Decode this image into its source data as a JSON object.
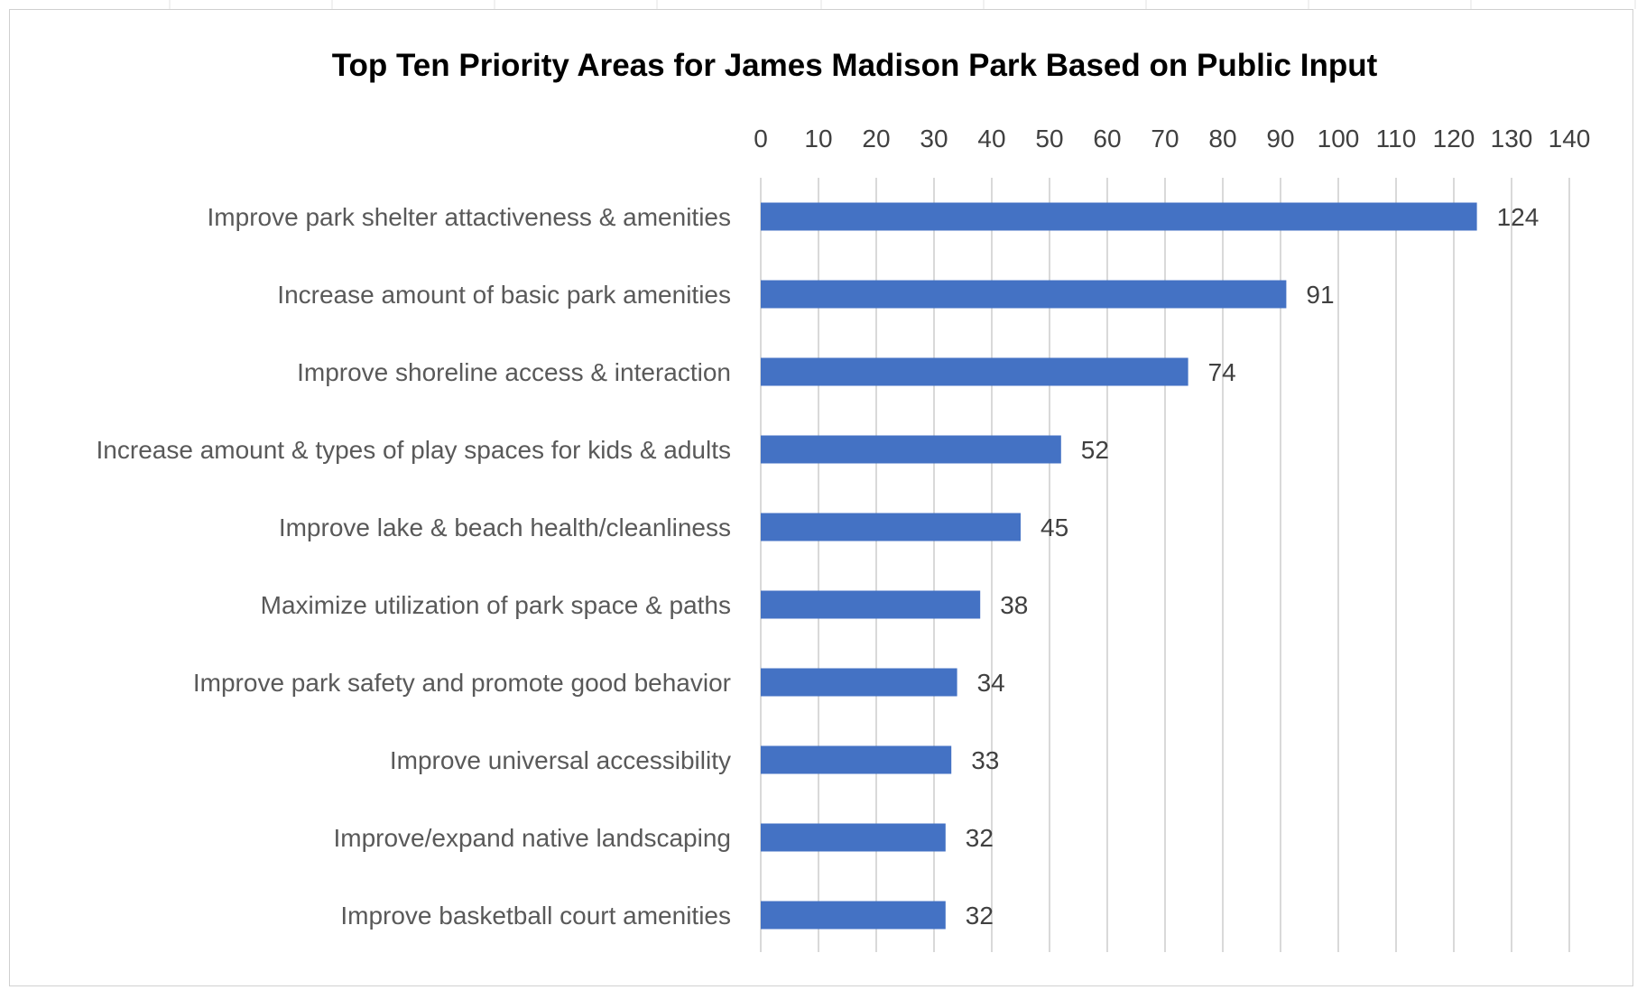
{
  "chart_data": {
    "type": "bar",
    "orientation": "horizontal",
    "title": "Top Ten Priority Areas for James Madison Park Based on Public Input",
    "categories": [
      "Improve park shelter attactiveness & amenities",
      "Increase amount of basic park amenities",
      "Improve shoreline access & interaction",
      "Increase amount & types of play spaces for kids & adults",
      "Improve lake & beach health/cleanliness",
      "Maximize utilization of park space & paths",
      "Improve park safety and promote good behavior",
      "Improve universal accessibility",
      "Improve/expand native landscaping",
      "Improve basketball court amenities"
    ],
    "values": [
      124,
      91,
      74,
      52,
      45,
      38,
      34,
      33,
      32,
      32
    ],
    "xlim": [
      0,
      140
    ],
    "x_ticks": [
      "0",
      "10",
      "20",
      "30",
      "40",
      "50",
      "60",
      "70",
      "80",
      "90",
      "100",
      "110",
      "120",
      "130",
      "140"
    ],
    "axis_position": "top",
    "grid": true,
    "data_labels": true,
    "legend": "none",
    "colors": {
      "bar": "#4472C4",
      "grid": "#d9d9d9"
    }
  }
}
